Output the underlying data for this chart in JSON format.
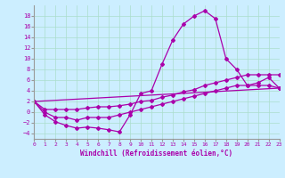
{
  "xlabel": "Windchill (Refroidissement éolien,°C)",
  "background_color": "#cceeff",
  "line_color": "#aa00aa",
  "x_ticks": [
    0,
    1,
    2,
    3,
    4,
    5,
    6,
    7,
    8,
    9,
    10,
    11,
    12,
    13,
    14,
    15,
    16,
    17,
    18,
    19,
    20,
    21,
    22,
    23
  ],
  "y_ticks": [
    -4,
    -2,
    0,
    2,
    4,
    6,
    8,
    10,
    12,
    14,
    16,
    18
  ],
  "xlim": [
    0,
    23
  ],
  "ylim": [
    -5,
    20
  ],
  "curve1_x": [
    0,
    1,
    2,
    3,
    4,
    5,
    6,
    7,
    8,
    9,
    10,
    11,
    12,
    13,
    14,
    15,
    16,
    17,
    18,
    19,
    20,
    21,
    22,
    23
  ],
  "curve1_y": [
    2,
    -0.5,
    -1.8,
    -2.5,
    -3,
    -2.8,
    -3,
    -3.3,
    -3.7,
    -0.5,
    3.5,
    4,
    9,
    13.5,
    16.5,
    18,
    19,
    17.5,
    10,
    8,
    5,
    5.5,
    6.5,
    4.5
  ],
  "curve2_x": [
    0,
    1,
    2,
    3,
    4,
    5,
    6,
    7,
    8,
    9,
    10,
    11,
    12,
    13,
    14,
    15,
    16,
    17,
    18,
    19,
    20,
    21,
    22,
    23
  ],
  "curve2_y": [
    2,
    0,
    -1,
    -1,
    -1.5,
    -1,
    -1,
    -1,
    -0.5,
    0,
    0.5,
    1,
    1.5,
    2,
    2.5,
    3,
    3.5,
    4,
    4.5,
    5,
    5,
    5,
    5,
    4.5
  ],
  "curve3_x": [
    0,
    1,
    2,
    3,
    4,
    5,
    6,
    7,
    8,
    9,
    10,
    11,
    12,
    13,
    14,
    15,
    16,
    17,
    18,
    19,
    20,
    21,
    22,
    23
  ],
  "curve3_y": [
    2,
    0.5,
    0.5,
    0.5,
    0.5,
    0.8,
    1,
    1,
    1.2,
    1.5,
    2,
    2.2,
    2.8,
    3.2,
    3.8,
    4.2,
    5,
    5.5,
    6,
    6.5,
    7,
    7,
    7,
    7
  ],
  "curve4_x": [
    0,
    23
  ],
  "curve4_y": [
    2,
    4.5
  ]
}
